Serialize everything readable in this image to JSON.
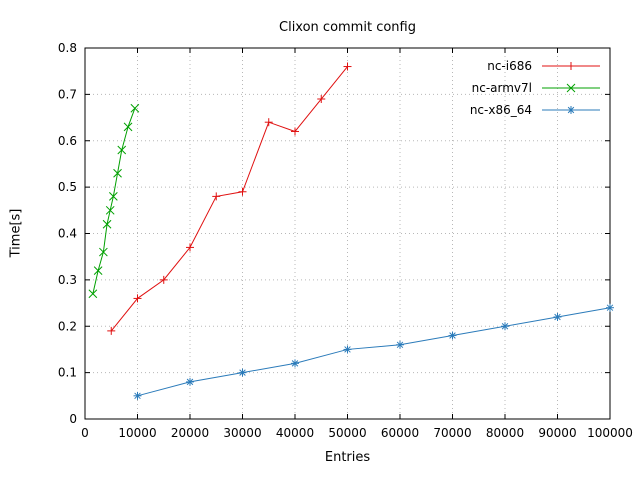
{
  "page": {
    "background": "#ffffff"
  },
  "chart_data": {
    "type": "line",
    "title": "Clixon commit config",
    "xlabel": "Entries",
    "ylabel": "Time[s]",
    "xlim": [
      0,
      100000
    ],
    "ylim": [
      0,
      0.8
    ],
    "xtick_labels": [
      "0",
      "10000",
      "20000",
      "30000",
      "40000",
      "50000",
      "60000",
      "70000",
      "80000",
      "90000",
      "100000"
    ],
    "ytick_labels": [
      "0",
      "0.1",
      "0.2",
      "0.3",
      "0.4",
      "0.5",
      "0.6",
      "0.7",
      "0.8"
    ],
    "grid": true,
    "legend_position": "top-right-inside",
    "colors": {
      "grid": "#b8b8b8",
      "border": "#000000",
      "text": "#000000"
    },
    "series": [
      {
        "name": "nc-i686",
        "color": "#e01010",
        "marker": "plus",
        "x": [
          5000,
          10000,
          15000,
          20000,
          25000,
          30000,
          35000,
          40000,
          45000,
          50000
        ],
        "y": [
          0.19,
          0.26,
          0.3,
          0.37,
          0.48,
          0.49,
          0.64,
          0.62,
          0.69,
          0.76
        ]
      },
      {
        "name": "nc-armv7l",
        "color": "#00a000",
        "marker": "cross",
        "x": [
          1500,
          2500,
          3500,
          4200,
          4800,
          5400,
          6200,
          7000,
          8200,
          9500
        ],
        "y": [
          0.27,
          0.32,
          0.36,
          0.42,
          0.45,
          0.48,
          0.53,
          0.58,
          0.63,
          0.67
        ]
      },
      {
        "name": "nc-x86_64",
        "color": "#2b7bba",
        "marker": "asterisk",
        "x": [
          10000,
          20000,
          30000,
          40000,
          50000,
          60000,
          70000,
          80000,
          90000,
          100000
        ],
        "y": [
          0.05,
          0.08,
          0.1,
          0.12,
          0.15,
          0.16,
          0.18,
          0.2,
          0.22,
          0.24
        ]
      }
    ]
  }
}
